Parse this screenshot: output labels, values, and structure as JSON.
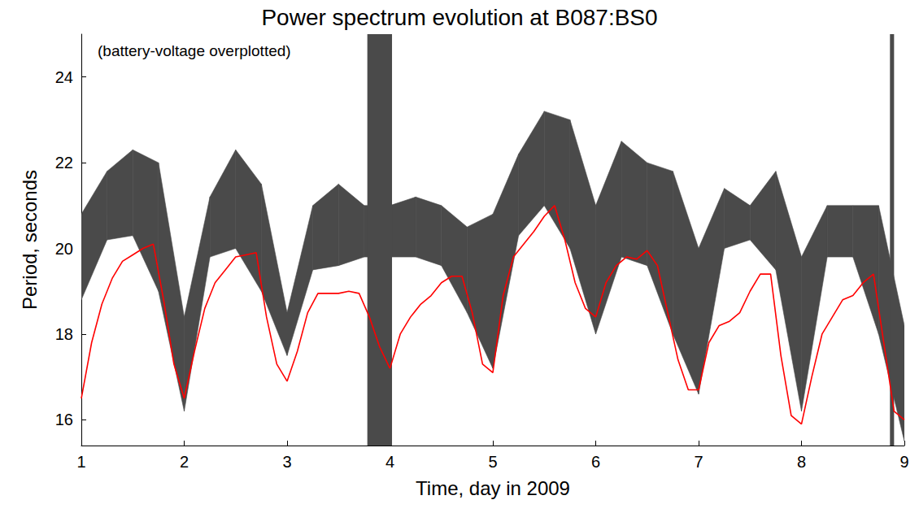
{
  "chart_data": {
    "type": "line",
    "title": "Power spectrum evolution at B087:BS0",
    "annotation": "(battery-voltage overplotted)",
    "x_label": "Time, day in 2009",
    "y_label": "Period, seconds",
    "xlim": [
      1,
      9
    ],
    "ylim": [
      15.4,
      25
    ],
    "xticks": [
      1,
      2,
      3,
      4,
      5,
      6,
      7,
      8,
      9
    ],
    "yticks": [
      16,
      18,
      20,
      22,
      24
    ],
    "grid": false,
    "spectrum": {
      "color": "#4a4a4a",
      "x": [
        1,
        1.25,
        1.5,
        1.75,
        2,
        2.25,
        2.5,
        2.75,
        3,
        3.25,
        3.5,
        3.75,
        4,
        4.25,
        4.5,
        4.75,
        5,
        5.25,
        5.5,
        5.75,
        6,
        6.25,
        6.5,
        6.75,
        7,
        7.25,
        7.5,
        7.75,
        8,
        8.25,
        8.5,
        8.75,
        9
      ],
      "band_low": [
        18.8,
        20.2,
        20.3,
        19.0,
        16.2,
        19.8,
        20.0,
        19.0,
        17.5,
        19.5,
        19.6,
        19.8,
        19.8,
        19.8,
        19.6,
        18.5,
        17.2,
        20.3,
        21.0,
        20.0,
        18.0,
        19.8,
        19.6,
        18.0,
        16.6,
        20.0,
        20.2,
        19.5,
        16.2,
        19.8,
        19.8,
        18.0,
        15.5
      ],
      "band_high": [
        20.8,
        21.8,
        22.3,
        22.0,
        18.4,
        21.2,
        22.3,
        21.5,
        18.5,
        21.0,
        21.5,
        21.0,
        21.0,
        21.2,
        21.0,
        20.5,
        20.8,
        22.2,
        23.2,
        23.0,
        21.0,
        22.5,
        22.0,
        21.8,
        20.0,
        21.4,
        21.0,
        21.8,
        19.8,
        21.0,
        21.0,
        21.0,
        18.2
      ],
      "streaks": [
        {
          "x0": 3.78,
          "x1": 4.02
        },
        {
          "x0": 8.86,
          "x1": 8.9
        }
      ]
    },
    "series": [
      {
        "color": "#ff0000",
        "x": [
          1.0,
          1.1,
          1.2,
          1.3,
          1.4,
          1.5,
          1.6,
          1.7,
          1.8,
          1.9,
          2.0,
          2.1,
          2.2,
          2.3,
          2.4,
          2.5,
          2.6,
          2.7,
          2.8,
          2.9,
          3.0,
          3.1,
          3.2,
          3.3,
          3.4,
          3.5,
          3.6,
          3.7,
          3.8,
          3.9,
          4.0,
          4.1,
          4.2,
          4.3,
          4.4,
          4.5,
          4.6,
          4.7,
          4.8,
          4.9,
          5.0,
          5.1,
          5.2,
          5.3,
          5.4,
          5.5,
          5.6,
          5.7,
          5.8,
          5.9,
          6.0,
          6.1,
          6.2,
          6.3,
          6.4,
          6.5,
          6.6,
          6.7,
          6.8,
          6.9,
          7.0,
          7.1,
          7.2,
          7.3,
          7.4,
          7.5,
          7.6,
          7.7,
          7.8,
          7.9,
          8.0,
          8.1,
          8.2,
          8.3,
          8.4,
          8.5,
          8.6,
          8.7,
          8.8,
          8.9,
          9.0
        ],
        "values": [
          16.5,
          17.8,
          18.7,
          19.3,
          19.7,
          19.85,
          20.0,
          20.1,
          18.8,
          17.3,
          16.5,
          17.6,
          18.6,
          19.2,
          19.5,
          19.8,
          19.85,
          19.9,
          18.4,
          17.3,
          16.9,
          17.6,
          18.5,
          18.95,
          18.95,
          18.95,
          19.0,
          18.95,
          18.4,
          17.7,
          17.2,
          18.0,
          18.4,
          18.7,
          18.9,
          19.2,
          19.35,
          19.35,
          18.5,
          17.3,
          17.1,
          18.9,
          19.8,
          20.1,
          20.4,
          20.75,
          21.0,
          20.2,
          19.2,
          18.6,
          18.4,
          19.2,
          19.6,
          19.8,
          19.75,
          19.95,
          19.6,
          18.5,
          17.4,
          16.7,
          16.7,
          17.8,
          18.2,
          18.3,
          18.5,
          19.0,
          19.4,
          19.4,
          17.5,
          16.1,
          15.9,
          17.0,
          18.0,
          18.4,
          18.8,
          18.9,
          19.2,
          19.4,
          17.8,
          16.2,
          16.0
        ]
      }
    ]
  }
}
